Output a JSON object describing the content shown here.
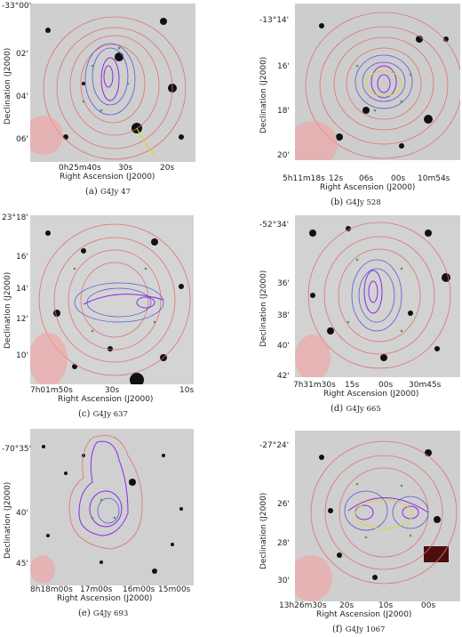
{
  "axis_labels": {
    "dec": "Declination (J2000)",
    "ra": "Right Ascension (J2000)"
  },
  "panels": [
    {
      "id": "a",
      "caption_label": "(a)",
      "caption_source": "G4Jy 47",
      "dec_ticks": [
        "-33°00'",
        "02'",
        "04'",
        "06'"
      ],
      "ra_ticks": [
        "0h25m40s",
        "30s",
        "20s"
      ]
    },
    {
      "id": "b",
      "caption_label": "(b)",
      "caption_source": "G4Jy 528",
      "dec_ticks": [
        "-13°14'",
        "16'",
        "18'",
        "20'"
      ],
      "ra_ticks": [
        "5h11m18s",
        "12s",
        "06s",
        "00s",
        "10m54s"
      ]
    },
    {
      "id": "c",
      "caption_label": "(c)",
      "caption_source": "G4Jy 637",
      "dec_ticks": [
        "23°18'",
        "16'",
        "14'",
        "12'",
        "10'"
      ],
      "ra_ticks": [
        "7h01m50s",
        "30s",
        "10s"
      ]
    },
    {
      "id": "d",
      "caption_label": "(d)",
      "caption_source": "G4Jy 665",
      "dec_ticks": [
        "-52°34'",
        "36'",
        "38'",
        "40'",
        "42'"
      ],
      "ra_ticks": [
        "7h31m30s",
        "15s",
        "00s",
        "30m45s"
      ]
    },
    {
      "id": "e",
      "caption_label": "(e)",
      "caption_source": "G4Jy 693",
      "dec_ticks": [
        "-70°35'",
        "40'",
        "45'"
      ],
      "ra_ticks": [
        "8h18m00s",
        "17m00s",
        "16m00s",
        "15m00s"
      ]
    },
    {
      "id": "f",
      "caption_label": "(f)",
      "caption_source": "G4Jy 1067",
      "dec_ticks": [
        "-27°24'",
        "26'",
        "28'",
        "30'"
      ],
      "ra_ticks": [
        "13h26m30s",
        "20s",
        "10s",
        "00s"
      ]
    }
  ],
  "colors": {
    "radio_contours": "#e07070",
    "mid_contours": "#5a5ad8",
    "high_contours": "#8a2be2",
    "inner_contours": "#d8d830",
    "stars": "#111111",
    "markers": "#4aa04a",
    "beam": "#f4a0a0"
  }
}
